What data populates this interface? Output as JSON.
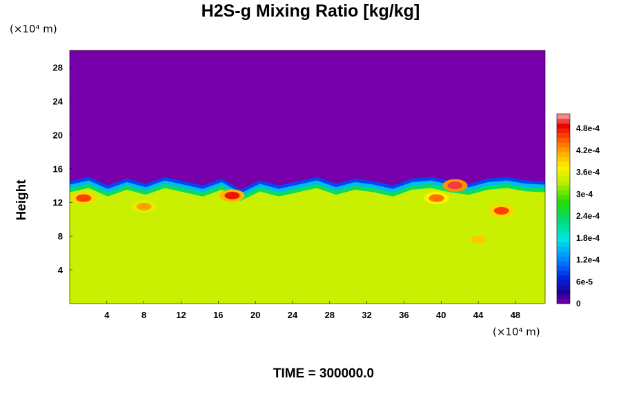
{
  "chart_data": {
    "type": "heatmap",
    "title": "H2S-g Mixing Ratio [kg/kg]",
    "ylabel": "Height",
    "xlabel": "",
    "x_unit": "(×10⁴ m)",
    "y_unit": "(×10⁴ m)",
    "xlim": [
      0,
      51.2
    ],
    "ylim": [
      0,
      30
    ],
    "x_ticks": [
      "4",
      "8",
      "12",
      "16",
      "20",
      "24",
      "28",
      "32",
      "36",
      "40",
      "44",
      "48"
    ],
    "y_ticks": [
      "4",
      "8",
      "12",
      "16",
      "20",
      "24",
      "28"
    ],
    "colorbar": {
      "min": 0,
      "max": 0.00052,
      "tick_values": [
        0,
        6e-05,
        0.00012,
        0.00018,
        0.00024,
        0.0003,
        0.00036,
        0.00042,
        0.00048
      ],
      "tick_labels": [
        "0",
        "6e-5",
        "1.2e-4",
        "1.8e-4",
        "2.4e-4",
        "3e-4",
        "3.6e-4",
        "4.2e-4",
        "4.8e-4"
      ]
    },
    "fields": {
      "upper_layer_value": 0,
      "lower_layer_value": 0.00034,
      "interface_height": [
        14.5,
        15.0,
        14.0,
        14.8,
        14.2,
        15.0,
        14.5,
        14.0,
        14.8,
        13.5,
        14.6,
        14.0,
        14.5,
        15.0,
        14.2,
        14.8,
        14.5,
        14.0,
        14.8,
        15.0,
        14.5,
        14.2,
        14.8,
        15.0,
        14.6,
        14.5
      ],
      "high_concentration_regions": [
        {
          "x": 1.5,
          "y": 12.5,
          "value": 0.00046
        },
        {
          "x": 8.0,
          "y": 11.5,
          "value": 0.00042
        },
        {
          "x": 17.5,
          "y": 12.8,
          "value": 0.00048
        },
        {
          "x": 39.5,
          "y": 12.5,
          "value": 0.00044
        },
        {
          "x": 41.5,
          "y": 14.0,
          "value": 0.0005
        },
        {
          "x": 44.0,
          "y": 7.6,
          "value": 0.0004
        },
        {
          "x": 46.5,
          "y": 11.0,
          "value": 0.00046
        }
      ]
    }
  },
  "footer": {
    "time_label": "TIME = 300000.0"
  }
}
